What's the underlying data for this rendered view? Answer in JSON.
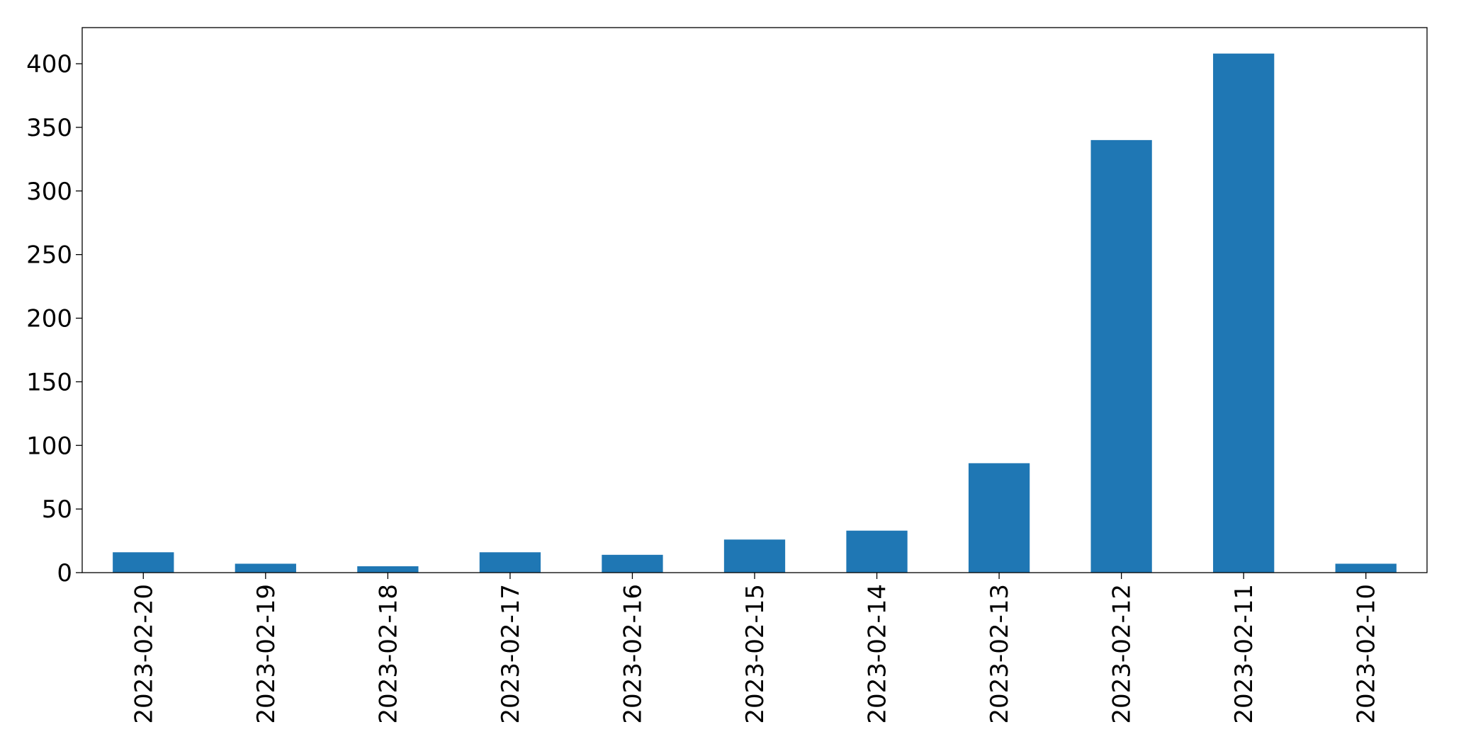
{
  "chart_data": {
    "type": "bar",
    "categories": [
      "2023-02-20",
      "2023-02-19",
      "2023-02-18",
      "2023-02-17",
      "2023-02-16",
      "2023-02-15",
      "2023-02-14",
      "2023-02-13",
      "2023-02-12",
      "2023-02-11",
      "2023-02-10"
    ],
    "values": [
      16,
      7,
      5,
      16,
      14,
      26,
      33,
      86,
      340,
      408,
      7
    ],
    "color": "#1f77b4",
    "ylim": [
      0,
      428.4
    ],
    "yticks": [
      0,
      50,
      100,
      150,
      200,
      250,
      300,
      350,
      400
    ],
    "grid": false
  }
}
